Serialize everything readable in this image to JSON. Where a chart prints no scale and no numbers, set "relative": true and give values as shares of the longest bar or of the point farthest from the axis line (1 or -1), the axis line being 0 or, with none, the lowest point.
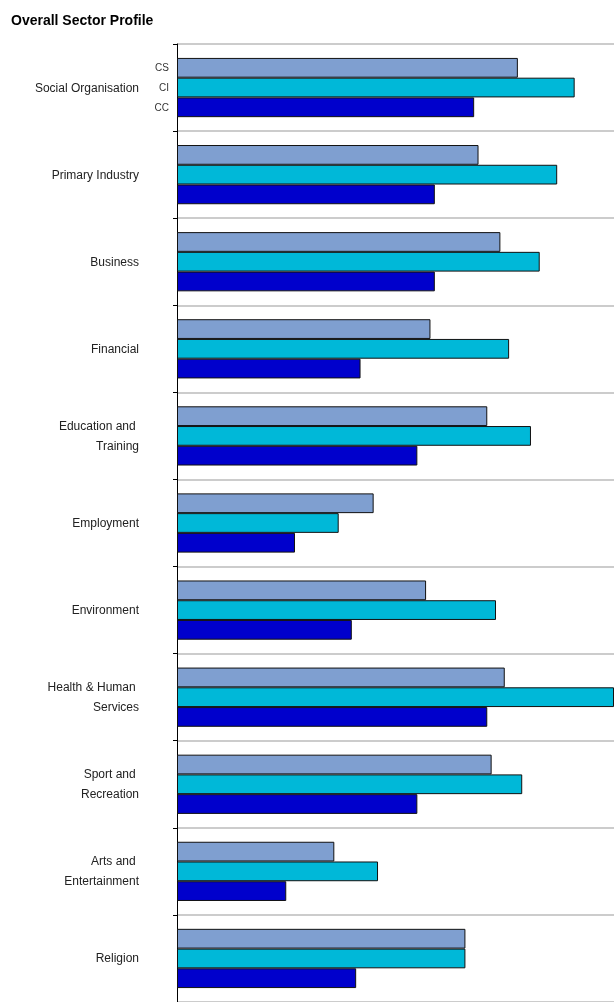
{
  "chart_data": {
    "type": "bar",
    "title": "Overall Sector Profile",
    "orientation": "horizontal",
    "relative": true,
    "grid": "y",
    "legend": false,
    "categories": [
      "Social Organisation",
      "Primary Industry",
      "Business",
      "Financial",
      "Education and Training",
      "Employment",
      "Environment",
      "Health & Human Services",
      "Sport and Recreation",
      "Arts and Entertainment",
      "Religion"
    ],
    "series": [
      {
        "name": "CS",
        "color": "#7f9fd0",
        "values": [
          0.78,
          0.69,
          0.74,
          0.58,
          0.71,
          0.45,
          0.57,
          0.75,
          0.72,
          0.36,
          0.66
        ]
      },
      {
        "name": "CI",
        "color": "#00b8d8",
        "values": [
          0.91,
          0.87,
          0.83,
          0.76,
          0.81,
          0.37,
          0.73,
          1,
          0.79,
          0.46,
          0.66
        ]
      },
      {
        "name": "CC",
        "color": "#0000cc",
        "values": [
          0.68,
          0.59,
          0.59,
          0.42,
          0.55,
          0.27,
          0.4,
          0.71,
          0.55,
          0.25,
          0.41
        ]
      }
    ]
  }
}
